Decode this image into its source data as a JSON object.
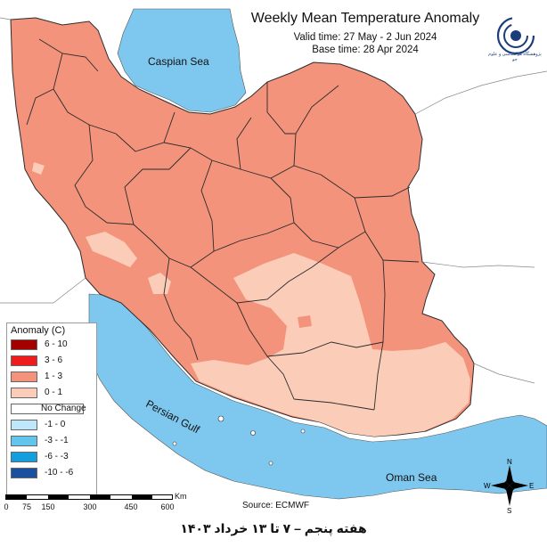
{
  "map": {
    "title": "Weekly Mean Temperature Anomaly",
    "valid_time": "Valid time: 27 May - 2 Jun 2024",
    "base_time": "Base time: 28 Apr 2024",
    "source": "Source: ECMWF",
    "footer": "هفته پنجم – ۷ تا ۱۳ خرداد ۱۴۰۳",
    "logo_text": "پژوهشگاه هواشناسی و علوم جو",
    "colors": {
      "sea": "#7ec8ef",
      "land_outside": "#ffffff",
      "anomaly_1_3": "#f4937b",
      "anomaly_0_1": "#fbcdb9",
      "border": "#2b2b2b"
    }
  },
  "water_bodies": [
    "Caspian Sea",
    "Persian Gulf",
    "Oman Sea"
  ],
  "legend": {
    "title": "Anomaly (C)",
    "items": [
      {
        "label": "6 - 10",
        "color": "#a50000"
      },
      {
        "label": "3 - 6",
        "color": "#ee1c1c"
      },
      {
        "label": "1 - 3",
        "color": "#f4937b"
      },
      {
        "label": "0 - 1",
        "color": "#fbcdb9"
      },
      {
        "label": "No Change",
        "color": "#ffffff"
      },
      {
        "label": "-1 - 0",
        "color": "#bfe7fb"
      },
      {
        "label": "-3 - -1",
        "color": "#62c5ee"
      },
      {
        "label": "-6 - -3",
        "color": "#139fdd"
      },
      {
        "label": "-10 - -6",
        "color": "#1b4fa0"
      }
    ]
  },
  "scale_bar": {
    "ticks": [
      "0",
      "75",
      "150",
      "300",
      "450",
      "600"
    ],
    "unit": "Km"
  },
  "compass": {
    "n": "N",
    "s": "S",
    "e": "E",
    "w": "W"
  }
}
